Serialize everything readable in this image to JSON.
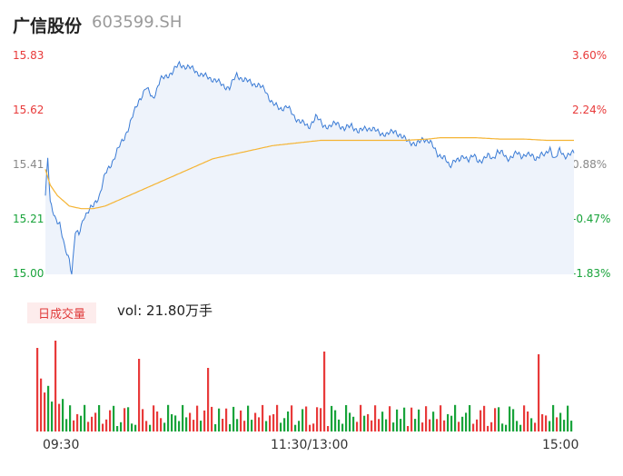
{
  "header": {
    "name": "广信股份",
    "code": "603599.SH"
  },
  "colors": {
    "price_line": "#3a7bd5",
    "avg_line": "#f5b433",
    "up": "#e83a3a",
    "down": "#18a33a",
    "area": "#eef3fb"
  },
  "chart_data": {
    "type": "line",
    "price_axis": {
      "min": 15.0,
      "max": 15.83,
      "ticks": [
        "15.83",
        "15.62",
        "15.41",
        "15.21",
        "15.00"
      ]
    },
    "pct_axis": {
      "ticks": [
        "3.60%",
        "2.24%",
        "0.88%",
        "-0.47%",
        "-1.83%"
      ]
    },
    "time_labels": [
      "09:30",
      "11:30/13:00",
      "15:00"
    ],
    "price_keypoints": [
      [
        0,
        15.3
      ],
      [
        2,
        15.44
      ],
      [
        4,
        15.27
      ],
      [
        8,
        15.22
      ],
      [
        12,
        15.19
      ],
      [
        16,
        15.1
      ],
      [
        20,
        15.06
      ],
      [
        22,
        15.0
      ],
      [
        25,
        15.16
      ],
      [
        28,
        15.15
      ],
      [
        32,
        15.22
      ],
      [
        36,
        15.24
      ],
      [
        40,
        15.26
      ],
      [
        45,
        15.3
      ],
      [
        50,
        15.38
      ],
      [
        55,
        15.42
      ],
      [
        60,
        15.47
      ],
      [
        66,
        15.52
      ],
      [
        72,
        15.59
      ],
      [
        78,
        15.66
      ],
      [
        84,
        15.71
      ],
      [
        90,
        15.67
      ],
      [
        96,
        15.74
      ],
      [
        100,
        15.75
      ],
      [
        106,
        15.77
      ],
      [
        112,
        15.8
      ],
      [
        118,
        15.79
      ],
      [
        124,
        15.78
      ],
      [
        130,
        15.76
      ],
      [
        136,
        15.75
      ],
      [
        142,
        15.74
      ],
      [
        148,
        15.72
      ],
      [
        154,
        15.71
      ],
      [
        160,
        15.76
      ],
      [
        166,
        15.74
      ],
      [
        172,
        15.73
      ],
      [
        178,
        15.72
      ],
      [
        184,
        15.7
      ],
      [
        190,
        15.65
      ],
      [
        196,
        15.63
      ],
      [
        202,
        15.64
      ],
      [
        208,
        15.6
      ],
      [
        214,
        15.58
      ],
      [
        220,
        15.56
      ],
      [
        226,
        15.6
      ],
      [
        232,
        15.57
      ],
      [
        238,
        15.56
      ],
      [
        244,
        15.58
      ],
      [
        250,
        15.55
      ],
      [
        256,
        15.57
      ],
      [
        262,
        15.54
      ],
      [
        268,
        15.56
      ],
      [
        274,
        15.55
      ],
      [
        280,
        15.54
      ],
      [
        286,
        15.53
      ],
      [
        292,
        15.55
      ],
      [
        298,
        15.52
      ],
      [
        304,
        15.51
      ],
      [
        310,
        15.49
      ],
      [
        316,
        15.52
      ],
      [
        322,
        15.5
      ],
      [
        328,
        15.46
      ],
      [
        334,
        15.44
      ],
      [
        338,
        15.41
      ],
      [
        342,
        15.44
      ],
      [
        346,
        15.43
      ],
      [
        350,
        15.45
      ],
      [
        354,
        15.44
      ],
      [
        358,
        15.45
      ],
      [
        362,
        15.43
      ],
      [
        366,
        15.44
      ],
      [
        370,
        15.45
      ],
      [
        374,
        15.44
      ],
      [
        378,
        15.47
      ],
      [
        382,
        15.46
      ],
      [
        386,
        15.44
      ],
      [
        390,
        15.45
      ],
      [
        394,
        15.46
      ],
      [
        398,
        15.45
      ],
      [
        402,
        15.46
      ],
      [
        406,
        15.45
      ],
      [
        410,
        15.44
      ],
      [
        414,
        15.46
      ],
      [
        418,
        15.45
      ],
      [
        422,
        15.48
      ],
      [
        426,
        15.44
      ],
      [
        430,
        15.47
      ],
      [
        434,
        15.45
      ],
      [
        438,
        15.46
      ],
      [
        442,
        15.46
      ]
    ],
    "avg_keypoints": [
      [
        0,
        15.4
      ],
      [
        4,
        15.34
      ],
      [
        10,
        15.3
      ],
      [
        20,
        15.26
      ],
      [
        30,
        15.25
      ],
      [
        40,
        15.25
      ],
      [
        50,
        15.26
      ],
      [
        60,
        15.28
      ],
      [
        70,
        15.3
      ],
      [
        80,
        15.32
      ],
      [
        90,
        15.34
      ],
      [
        100,
        15.36
      ],
      [
        110,
        15.38
      ],
      [
        120,
        15.4
      ],
      [
        130,
        15.42
      ],
      [
        140,
        15.44
      ],
      [
        150,
        15.45
      ],
      [
        160,
        15.46
      ],
      [
        170,
        15.47
      ],
      [
        180,
        15.48
      ],
      [
        190,
        15.49
      ],
      [
        200,
        15.495
      ],
      [
        210,
        15.5
      ],
      [
        220,
        15.505
      ],
      [
        230,
        15.51
      ],
      [
        250,
        15.51
      ],
      [
        270,
        15.51
      ],
      [
        300,
        15.51
      ],
      [
        320,
        15.515
      ],
      [
        330,
        15.52
      ],
      [
        360,
        15.52
      ],
      [
        380,
        15.515
      ],
      [
        400,
        15.515
      ],
      [
        420,
        15.51
      ],
      [
        442,
        15.51
      ]
    ],
    "volume_label": "日成交量",
    "volume_text": "vol: 21.80万手",
    "volume_bars_count": 148,
    "volume_max": 100
  }
}
